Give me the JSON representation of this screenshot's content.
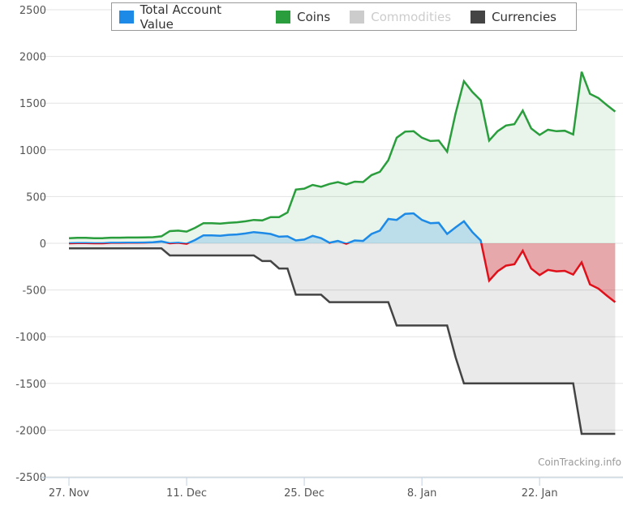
{
  "chart_data": {
    "type": "area",
    "title": "",
    "xlabel": "",
    "ylabel": "",
    "ylim": [
      -2500,
      2500
    ],
    "yticks": [
      2500,
      2000,
      1500,
      1000,
      500,
      0,
      -500,
      -1000,
      -1500,
      -2000,
      -2500
    ],
    "x_start": "27 Nov",
    "x_step": "1 day",
    "xticks": [
      {
        "day": 0,
        "label": "27. Nov"
      },
      {
        "day": 14,
        "label": "11. Dec"
      },
      {
        "day": 28,
        "label": "25. Dec"
      },
      {
        "day": 42,
        "label": "8. Jan"
      },
      {
        "day": 56,
        "label": "22. Jan"
      }
    ],
    "grid": true,
    "legend_placement": "top",
    "series": [
      {
        "name": "Total Account Value",
        "color": "#1c8ae6",
        "negative_color": "#e0101a",
        "visible": true,
        "values": [
          0,
          3,
          3,
          0,
          0,
          5,
          5,
          7,
          7,
          8,
          10,
          20,
          0,
          5,
          -5,
          35,
          85,
          85,
          80,
          90,
          95,
          105,
          120,
          110,
          100,
          70,
          75,
          30,
          40,
          80,
          55,
          5,
          25,
          -5,
          30,
          25,
          100,
          135,
          260,
          250,
          315,
          320,
          250,
          215,
          220,
          100,
          170,
          235,
          120,
          30,
          -400,
          -300,
          -240,
          -225,
          -80,
          -270,
          -340,
          -285,
          -300,
          -295,
          -335,
          -205,
          -440,
          -485,
          -560,
          -630
        ]
      },
      {
        "name": "Coins",
        "color": "#2a9d3c",
        "visible": true,
        "values": [
          55,
          58,
          58,
          55,
          55,
          60,
          60,
          62,
          62,
          63,
          65,
          75,
          130,
          135,
          125,
          165,
          215,
          215,
          210,
          220,
          225,
          235,
          250,
          245,
          280,
          280,
          330,
          575,
          585,
          625,
          605,
          635,
          655,
          630,
          660,
          655,
          730,
          765,
          890,
          1130,
          1195,
          1200,
          1130,
          1095,
          1100,
          980,
          1390,
          1735,
          1620,
          1530,
          1100,
          1200,
          1260,
          1275,
          1420,
          1230,
          1160,
          1215,
          1200,
          1205,
          1165,
          1835,
          1600,
          1555,
          1480,
          1410
        ]
      },
      {
        "name": "Commodities",
        "color": "#cccccc",
        "visible": false,
        "values": []
      },
      {
        "name": "Currencies",
        "color": "#444444",
        "visible": true,
        "values": [
          -55,
          -55,
          -55,
          -55,
          -55,
          -55,
          -55,
          -55,
          -55,
          -55,
          -55,
          -55,
          -130,
          -130,
          -130,
          -130,
          -130,
          -130,
          -130,
          -130,
          -130,
          -130,
          -130,
          -190,
          -190,
          -270,
          -270,
          -550,
          -550,
          -550,
          -550,
          -630,
          -630,
          -630,
          -630,
          -630,
          -630,
          -630,
          -630,
          -880,
          -880,
          -880,
          -880,
          -880,
          -880,
          -880,
          -1220,
          -1500,
          -1500,
          -1500,
          -1500,
          -1500,
          -1500,
          -1500,
          -1500,
          -1500,
          -1500,
          -1500,
          -1500,
          -1500,
          -1500,
          -2040,
          -2040,
          -2040,
          -2040,
          -2040
        ]
      }
    ]
  },
  "legend": {
    "items": [
      {
        "label": "Total Account Value",
        "color": "#1c8ae6"
      },
      {
        "label": "Coins",
        "color": "#2a9d3c"
      },
      {
        "label": "Commodities",
        "color": "#cccccc"
      },
      {
        "label": "Currencies",
        "color": "#444444"
      }
    ]
  },
  "credit": "CoinTracking.info"
}
